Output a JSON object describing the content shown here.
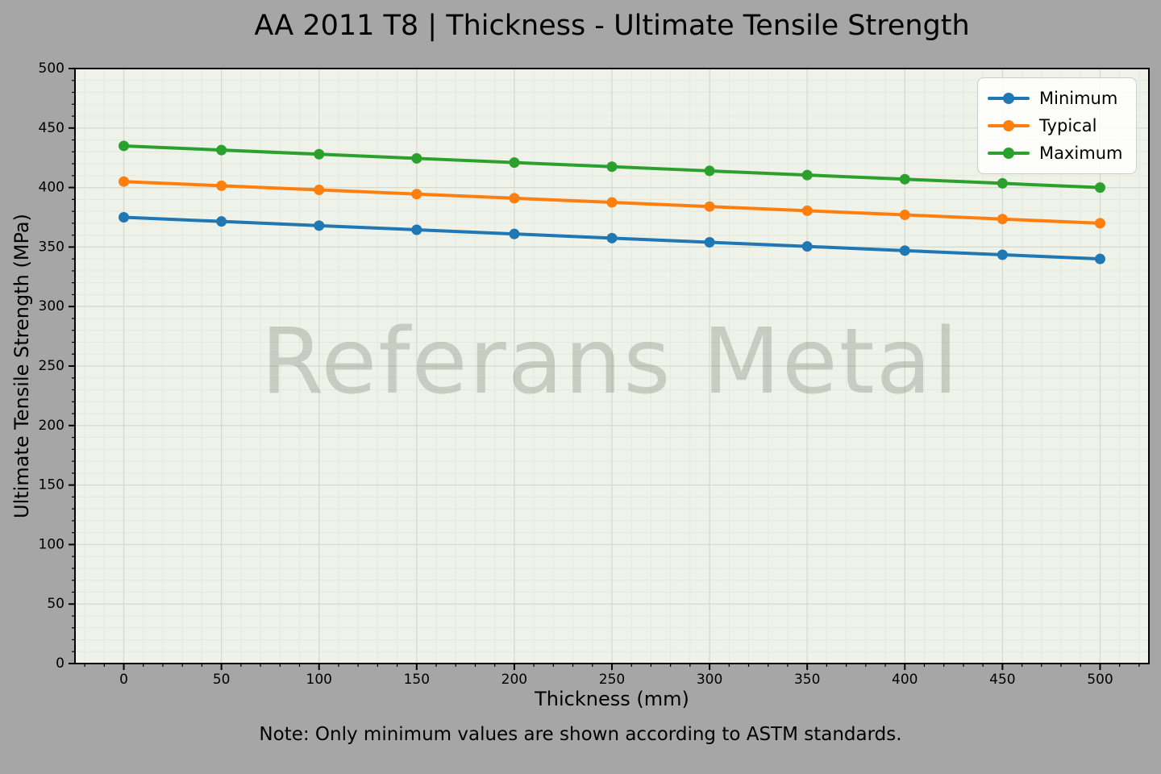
{
  "chart_data": {
    "type": "line",
    "title": "AA 2011 T8 | Thickness - Ultimate Tensile Strength",
    "xlabel": "Thickness (mm)",
    "ylabel": "Ultimate Tensile Strength (MPa)",
    "note": "Note: Only minimum values are shown according to ASTM standards.",
    "watermark": "Referans Metal",
    "x": [
      0,
      50,
      100,
      150,
      200,
      250,
      300,
      350,
      400,
      450,
      500
    ],
    "series": [
      {
        "name": "Minimum",
        "color": "#1f77b4",
        "values": [
          375,
          371.5,
          368,
          364.5,
          361,
          357.5,
          354,
          350.5,
          347,
          343.5,
          340
        ]
      },
      {
        "name": "Typical",
        "color": "#ff7f0e",
        "values": [
          405,
          401.5,
          398,
          394.5,
          391,
          387.5,
          384,
          380.5,
          377,
          373.5,
          370
        ]
      },
      {
        "name": "Maximum",
        "color": "#2ca02c",
        "values": [
          435,
          431.5,
          428,
          424.5,
          421,
          417.5,
          414,
          410.5,
          407,
          403.5,
          400
        ]
      }
    ],
    "xlim": [
      -25,
      525
    ],
    "ylim": [
      0,
      500
    ],
    "x_ticks": [
      0,
      50,
      100,
      150,
      200,
      250,
      300,
      350,
      400,
      450,
      500
    ],
    "y_ticks": [
      0,
      50,
      100,
      150,
      200,
      250,
      300,
      350,
      400,
      450,
      500
    ],
    "minor_step": 10,
    "grid": true,
    "legend_position": "top-right",
    "colors": {
      "figure_bg": "#a6a6a6",
      "plot_bg": "#eef2e9",
      "grid_major": "#d5dbce",
      "grid_minor": "#e4e9dd",
      "spine": "#000000",
      "tick": "#000000"
    }
  }
}
